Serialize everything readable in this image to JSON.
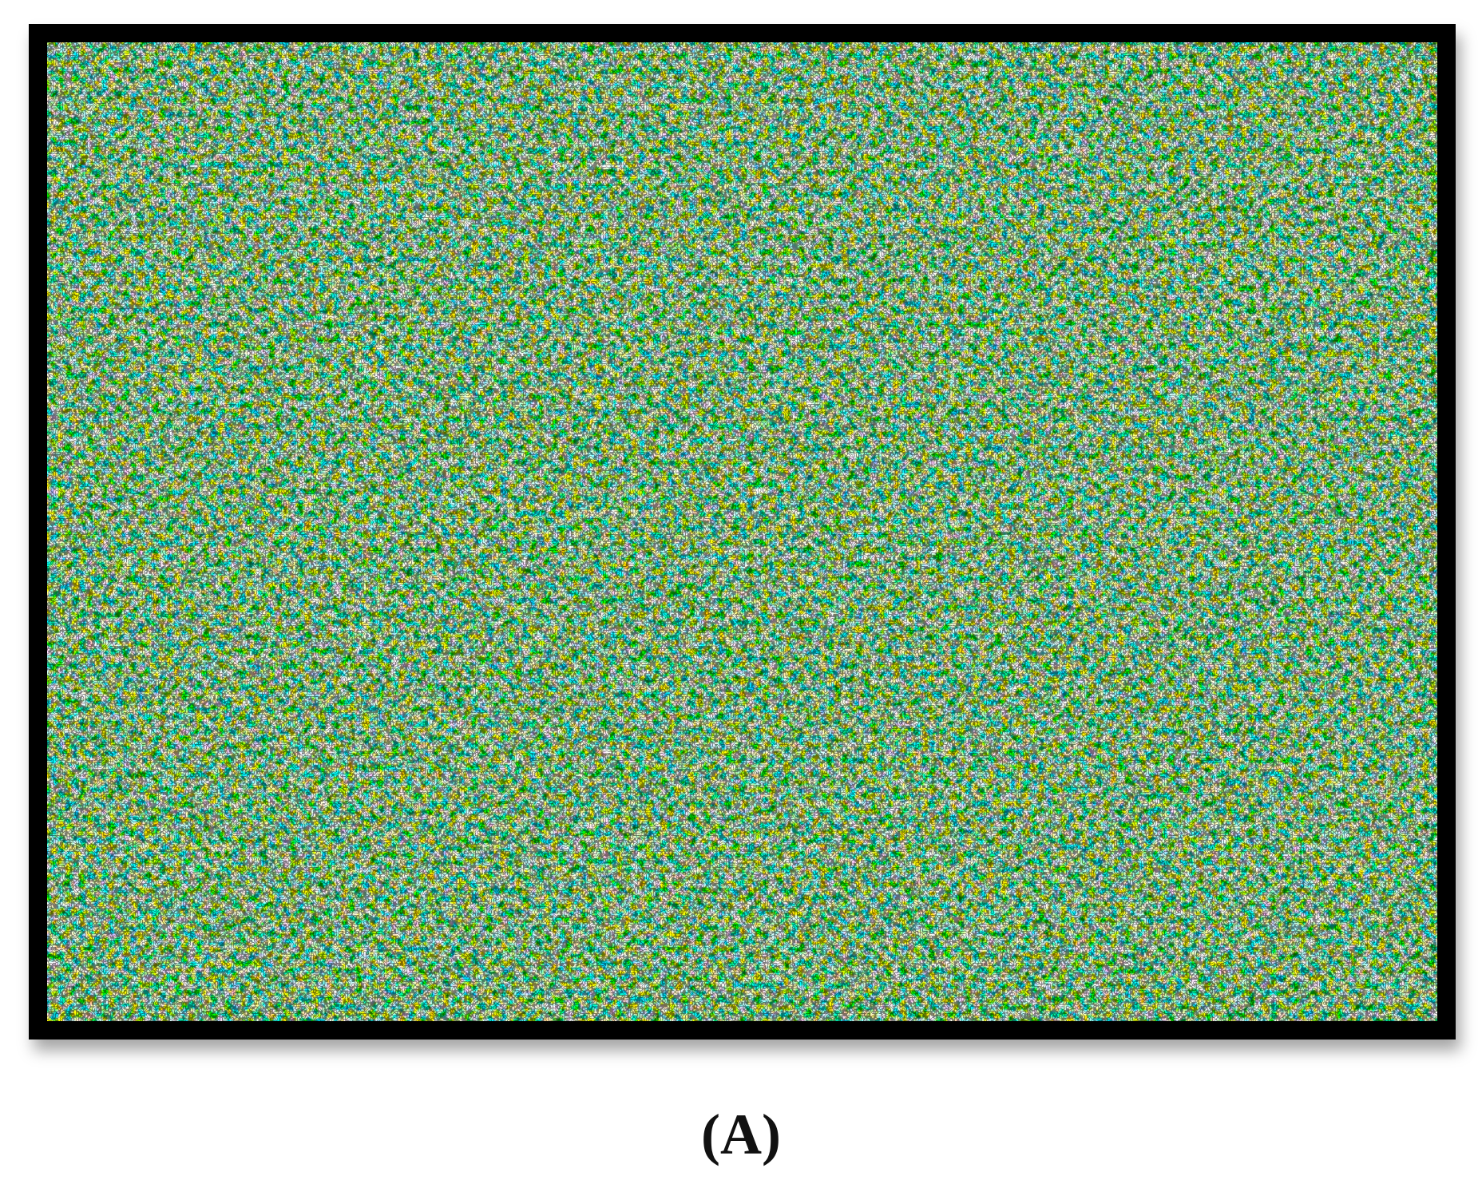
{
  "caption": "(A)"
}
